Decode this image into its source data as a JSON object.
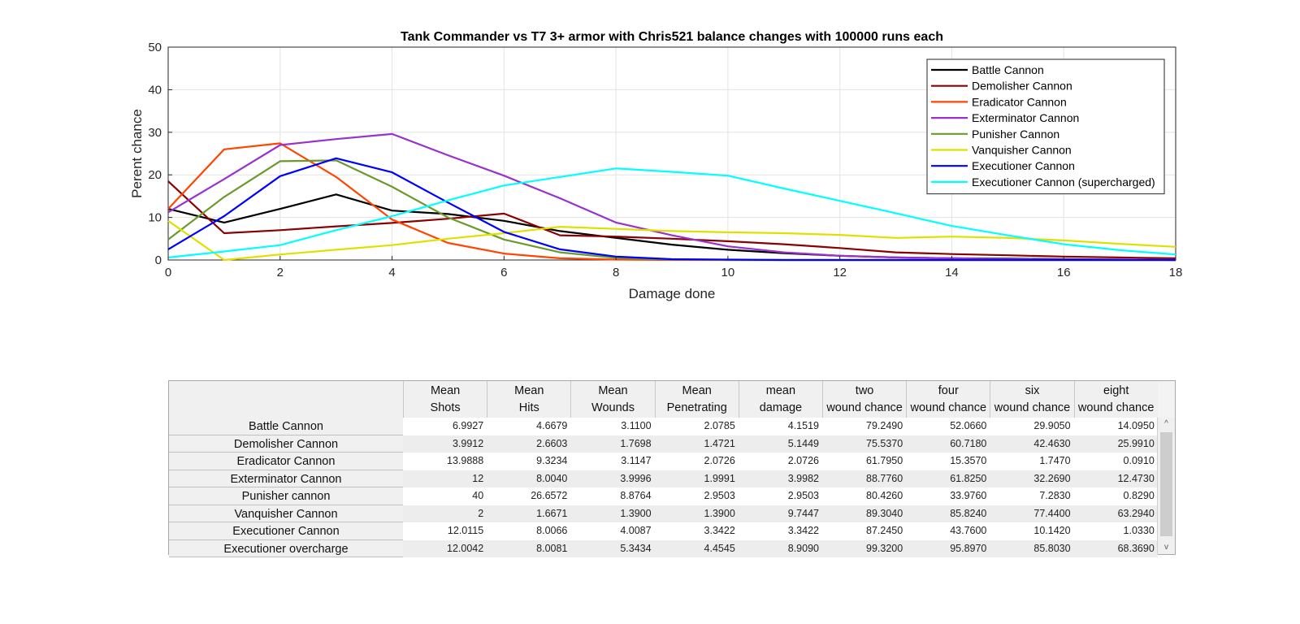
{
  "chart_data": {
    "type": "line",
    "title": "Tank Commander vs T7 3+ armor with Chris521 balance changes with 100000 runs each",
    "xlabel": "Damage done",
    "ylabel": "Perent chance",
    "xlim": [
      0,
      18
    ],
    "ylim": [
      0,
      50
    ],
    "xticks": [
      "0",
      "2",
      "4",
      "6",
      "8",
      "10",
      "12",
      "14",
      "16",
      "18"
    ],
    "yticks": [
      "0",
      "10",
      "20",
      "30",
      "40",
      "50"
    ],
    "grid": true,
    "legend_position": "top-right",
    "series": [
      {
        "name": "Battle Cannon",
        "color": "#000000",
        "x": [
          0,
          1,
          2,
          3,
          4,
          5,
          6,
          7,
          8,
          9,
          10,
          11,
          12,
          13,
          14,
          15,
          16,
          17,
          18
        ],
        "y": [
          12,
          8.8,
          12,
          15.4,
          11.6,
          10.8,
          9.2,
          6.8,
          5.2,
          3.6,
          2.4,
          1.6,
          1,
          0.6,
          0.4,
          0.3,
          0.2,
          0.1,
          0
        ]
      },
      {
        "name": "Demolisher Cannon",
        "color": "#8b0000",
        "x": [
          0,
          1,
          2,
          3,
          4,
          5,
          6,
          7,
          8,
          9,
          10,
          11,
          12,
          13,
          14,
          15,
          16,
          17,
          18
        ],
        "y": [
          18.5,
          6.3,
          7,
          7.9,
          8.7,
          9.7,
          10.9,
          5.8,
          5.5,
          5,
          4.4,
          3.7,
          2.8,
          1.8,
          1.4,
          1.1,
          0.8,
          0.6,
          0.4
        ]
      },
      {
        "name": "Eradicator Cannon",
        "color": "#ff4500",
        "x": [
          0,
          1,
          2,
          3,
          4,
          5,
          6,
          7,
          8,
          9,
          10,
          11,
          12,
          13,
          14,
          15,
          16,
          17,
          18
        ],
        "y": [
          12,
          26,
          27.4,
          19.5,
          9.5,
          4,
          1.5,
          0.4,
          0.1,
          0,
          0,
          0,
          0,
          0,
          0,
          0,
          0,
          0,
          0
        ]
      },
      {
        "name": "Exterminator Cannon",
        "color": "#9932cc",
        "x": [
          0,
          1,
          2,
          3,
          4,
          5,
          6,
          7,
          8,
          9,
          10,
          11,
          12,
          13,
          14,
          15,
          16,
          17,
          18
        ],
        "y": [
          11.2,
          19,
          27,
          28.4,
          29.6,
          24.6,
          19.8,
          14.5,
          8.8,
          5.8,
          3.2,
          1.8,
          1,
          0.6,
          0.4,
          0.2,
          0.1,
          0.1,
          0
        ]
      },
      {
        "name": "Punisher Cannon",
        "color": "#6b9a2b",
        "x": [
          0,
          1,
          2,
          3,
          4,
          5,
          6,
          7,
          8,
          9,
          10,
          11,
          12,
          13,
          14,
          15,
          16,
          17,
          18
        ],
        "y": [
          4.8,
          14.8,
          23.2,
          23.4,
          17.2,
          10,
          4.8,
          1.8,
          0.5,
          0.1,
          0,
          0,
          0,
          0,
          0,
          0,
          0,
          0,
          0
        ]
      },
      {
        "name": "Vanquisher Cannon",
        "color": "#e0e000",
        "x": [
          0,
          1,
          2,
          3,
          4,
          5,
          6,
          7,
          8,
          9,
          10,
          11,
          12,
          13,
          14,
          15,
          16,
          17,
          18
        ],
        "y": [
          9.2,
          0,
          1.3,
          2.4,
          3.5,
          5,
          6.3,
          7.8,
          7.3,
          6.8,
          6.5,
          6.3,
          5.9,
          5.2,
          5.5,
          5.2,
          4.6,
          3.8,
          3.1
        ]
      },
      {
        "name": "Executioner Cannon",
        "color": "#0000ff",
        "x": [
          0,
          1,
          2,
          3,
          4,
          5,
          6,
          7,
          8,
          9,
          10,
          11,
          12,
          13,
          14,
          15,
          16,
          17,
          18
        ],
        "y": [
          2.5,
          10.3,
          19.7,
          23.9,
          20.6,
          13.5,
          6.6,
          2.5,
          0.8,
          0.2,
          0.1,
          0,
          0,
          0,
          0,
          0,
          0,
          0,
          0
        ]
      },
      {
        "name": "Executioner Cannon (supercharged)",
        "color": "#00ffff",
        "x": [
          0,
          1,
          2,
          3,
          4,
          5,
          6,
          7,
          8,
          9,
          10,
          11,
          12,
          13,
          14,
          15,
          16,
          17,
          18
        ],
        "y": [
          0.6,
          2,
          3.5,
          7,
          10.3,
          14,
          17.5,
          19.5,
          21.5,
          20.7,
          19.8,
          16.8,
          13.9,
          11,
          8,
          5.8,
          3.7,
          2.3,
          1.3
        ]
      }
    ]
  },
  "table": {
    "columns": [
      [
        "Mean",
        "Shots"
      ],
      [
        "Mean",
        "Hits"
      ],
      [
        "Mean",
        "Wounds"
      ],
      [
        "Mean",
        "Penetrating"
      ],
      [
        "mean",
        "damage"
      ],
      [
        "two",
        "wound chance"
      ],
      [
        "four",
        "wound chance"
      ],
      [
        "six",
        "wound chance"
      ],
      [
        "eight",
        "wound chance"
      ]
    ],
    "rows": [
      {
        "label": "Battle Cannon",
        "values": [
          "6.9927",
          "4.6679",
          "3.1100",
          "2.0785",
          "4.1519",
          "79.2490",
          "52.0660",
          "29.9050",
          "14.0950"
        ]
      },
      {
        "label": "Demolisher Cannon",
        "values": [
          "3.9912",
          "2.6603",
          "1.7698",
          "1.4721",
          "5.1449",
          "75.5370",
          "60.7180",
          "42.4630",
          "25.9910"
        ]
      },
      {
        "label": "Eradicator Cannon",
        "values": [
          "13.9888",
          "9.3234",
          "3.1147",
          "2.0726",
          "2.0726",
          "61.7950",
          "15.3570",
          "1.7470",
          "0.0910"
        ]
      },
      {
        "label": "Exterminator Cannon",
        "values": [
          "12",
          "8.0040",
          "3.9996",
          "1.9991",
          "3.9982",
          "88.7760",
          "61.8250",
          "32.2690",
          "12.4730"
        ]
      },
      {
        "label": "Punisher cannon",
        "values": [
          "40",
          "26.6572",
          "8.8764",
          "2.9503",
          "2.9503",
          "80.4260",
          "33.9760",
          "7.2830",
          "0.8290"
        ]
      },
      {
        "label": "Vanquisher Cannon",
        "values": [
          "2",
          "1.6671",
          "1.3900",
          "1.3900",
          "9.7447",
          "89.3040",
          "85.8240",
          "77.4400",
          "63.2940"
        ]
      },
      {
        "label": "Executioner Cannon",
        "values": [
          "12.0115",
          "8.0066",
          "4.0087",
          "3.3422",
          "3.3422",
          "87.2450",
          "43.7600",
          "10.1420",
          "1.0330"
        ]
      },
      {
        "label": "Executioner overcharge",
        "values": [
          "12.0042",
          "8.0081",
          "5.3434",
          "4.4545",
          "8.9090",
          "99.3200",
          "95.8970",
          "85.8030",
          "68.3690"
        ]
      }
    ]
  },
  "scrollbar": {
    "up_icon": "^",
    "down_icon": "v"
  }
}
